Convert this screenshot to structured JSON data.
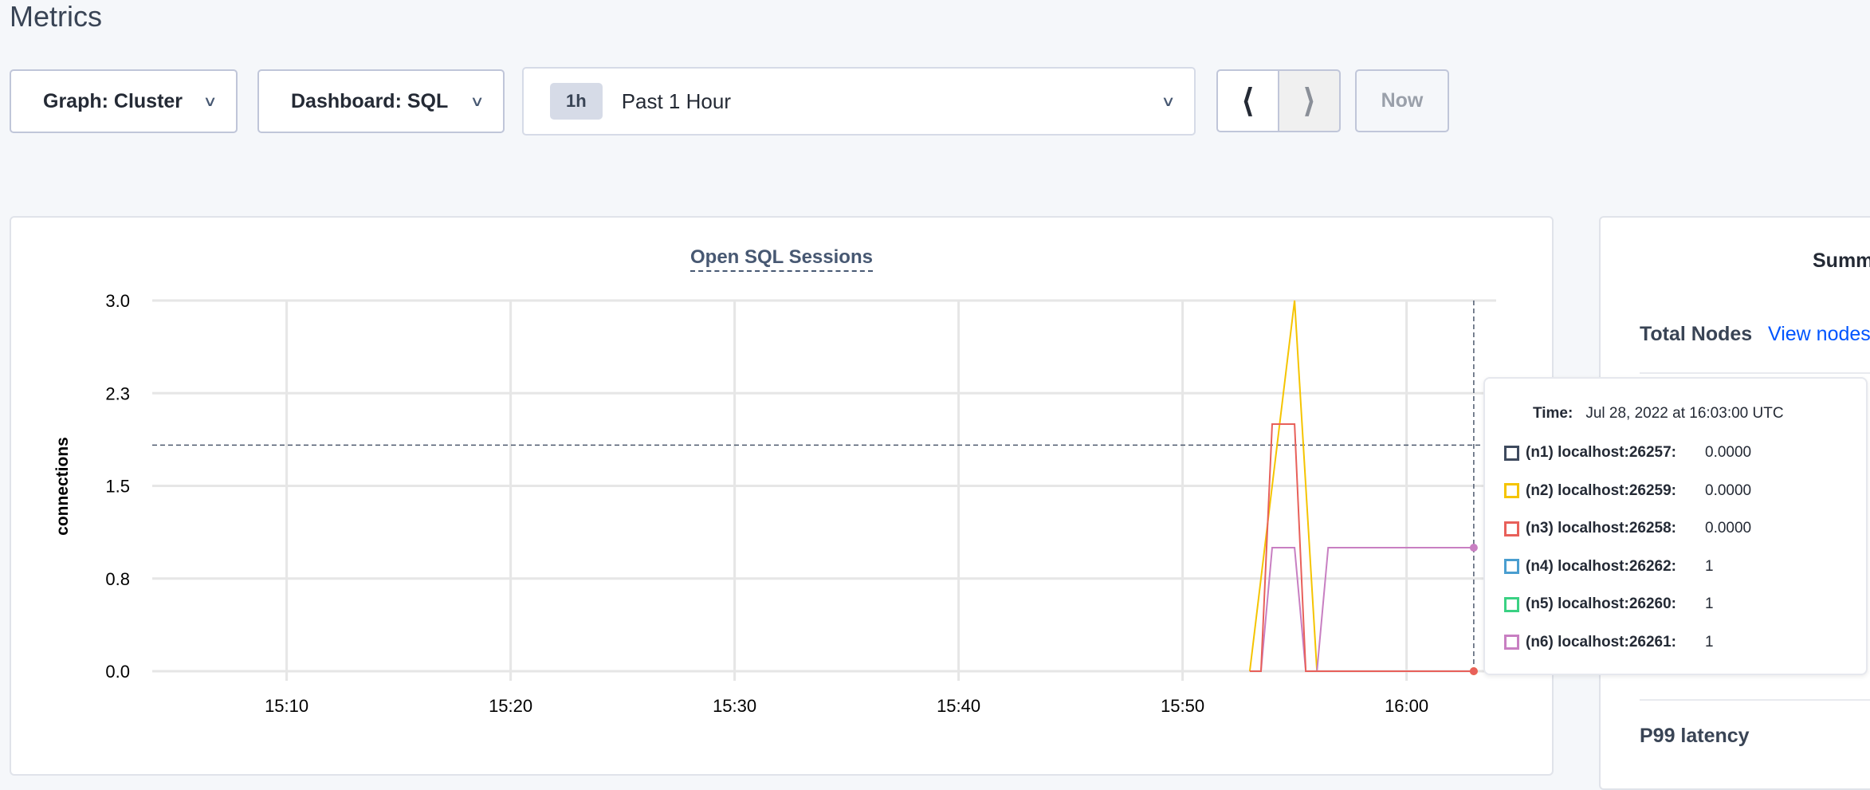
{
  "page": {
    "title": "Metrics"
  },
  "toolbar": {
    "graph_select": "Graph: Cluster",
    "dashboard_select": "Dashboard: SQL",
    "time_range_badge": "1h",
    "time_range_label": "Past 1 Hour",
    "prev_icon": "chevron-left-icon",
    "next_icon": "chevron-right-icon",
    "now_label": "Now"
  },
  "chart_data": {
    "type": "line",
    "title": "Open SQL Sessions",
    "ylabel": "connections",
    "xlabel": "",
    "ylim": [
      0,
      3.0
    ],
    "xlim": [
      "15:04:00",
      "16:04:00"
    ],
    "y_ticks": [
      "0.0",
      "0.8",
      "1.5",
      "2.3",
      "3.0"
    ],
    "x_ticks": [
      "15:10",
      "15:20",
      "15:30",
      "15:40",
      "15:50",
      "16:00"
    ],
    "grid": true,
    "hover_time": "16:03:00",
    "hover_value": 1.83,
    "series": [
      {
        "name": "(n2) localhost:26259",
        "color": "#f5c400",
        "x": [
          "15:53:00",
          "15:55:00",
          "15:56:00",
          "16:03:00"
        ],
        "y": [
          0,
          3,
          0,
          0
        ]
      },
      {
        "name": "(n6) localhost:26261",
        "color": "#c87fc2",
        "x": [
          "15:53:00",
          "15:53:30",
          "15:54:00",
          "15:55:00",
          "15:55:30",
          "15:56:00",
          "15:56:30",
          "16:03:00"
        ],
        "y": [
          0,
          0,
          1,
          1,
          0,
          0,
          1,
          1
        ]
      },
      {
        "name": "(n3) localhost:26258",
        "color": "#e8605a",
        "x": [
          "15:53:00",
          "15:53:30",
          "15:54:00",
          "15:55:00",
          "15:55:30",
          "16:03:00"
        ],
        "y": [
          0,
          0,
          2,
          2,
          0,
          0
        ]
      }
    ]
  },
  "tooltip": {
    "time_label": "Time:",
    "time_value": "Jul 28, 2022 at 16:03:00 UTC",
    "rows": [
      {
        "name": "(n1) localhost:26257:",
        "value": "0.0000",
        "color": "#3e4a5e"
      },
      {
        "name": "(n2) localhost:26259:",
        "value": "0.0000",
        "color": "#f5c400"
      },
      {
        "name": "(n3) localhost:26258:",
        "value": "0.0000",
        "color": "#e8605a"
      },
      {
        "name": "(n4) localhost:26262:",
        "value": "1",
        "color": "#4a9ed0"
      },
      {
        "name": "(n5) localhost:26260:",
        "value": "1",
        "color": "#3ad183"
      },
      {
        "name": "(n6) localhost:26261:",
        "value": "1",
        "color": "#c87fc2"
      }
    ]
  },
  "summary": {
    "title": "Summ",
    "total_nodes_label": "Total Nodes",
    "view_nodes_link": "View nodes",
    "p99_label": "P99 latency"
  }
}
